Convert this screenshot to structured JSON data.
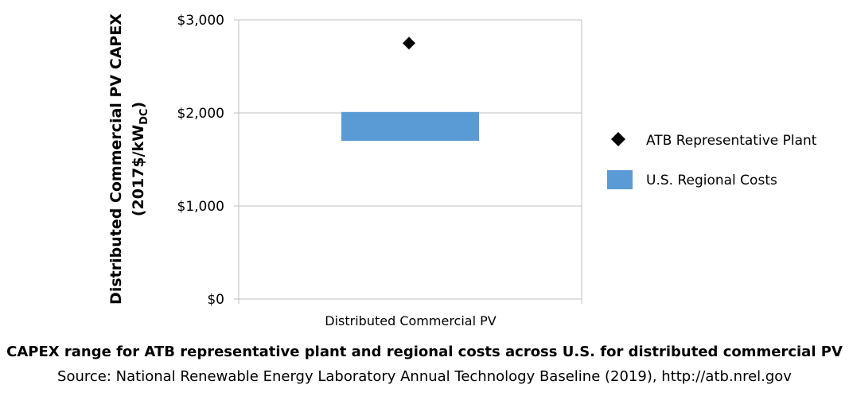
{
  "chart_data": {
    "type": "floating-bar-with-marker",
    "categories": [
      "Distributed Commercial PV"
    ],
    "ylabel_line1": "Distributed Commercial PV CAPEX",
    "ylabel_line2_prefix": "(2017$/kW",
    "ylabel_line2_sub": "DC",
    "ylabel_line2_suffix": ")",
    "ylim": [
      0,
      3000
    ],
    "yticks": [
      0,
      1000,
      2000,
      3000
    ],
    "ytick_labels": [
      "$0",
      "$1,000",
      "$2,000",
      "$3,000"
    ],
    "grid": true,
    "legend_position": "right",
    "series": [
      {
        "name": "ATB Representative Plant",
        "kind": "marker",
        "marker": "diamond",
        "color": "#000000",
        "values": [
          2750
        ]
      },
      {
        "name": "U.S. Regional Costs",
        "kind": "range-bar",
        "color": "#5b9bd5",
        "low": [
          1700
        ],
        "high": [
          2010
        ]
      }
    ]
  },
  "caption": {
    "title": "CAPEX range for ATB representative plant and regional costs across U.S. for distributed commercial PV",
    "source": "Source: National Renewable Energy Laboratory Annual Technology Baseline (2019), http://atb.nrel.gov"
  }
}
